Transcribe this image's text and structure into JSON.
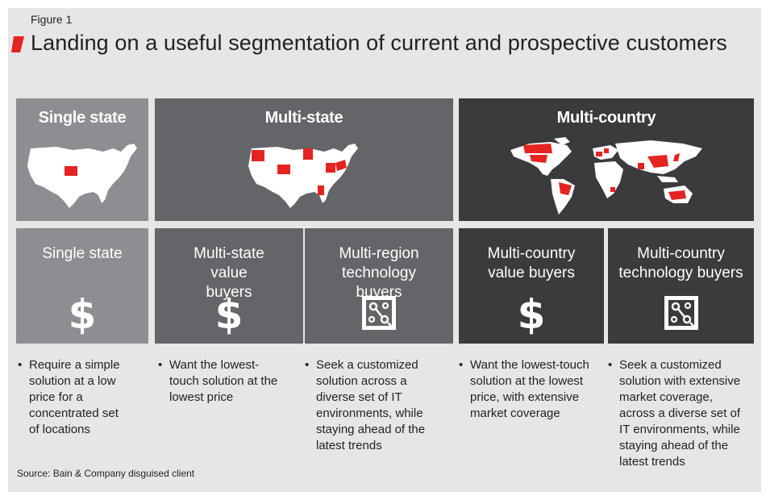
{
  "figure_label": "Figure 1",
  "title": "Landing on a useful segmentation of current and prospective customers",
  "colors": {
    "accent": "#e52321",
    "light_gray": "#8d8e91",
    "mid_gray": "#646569",
    "dark_gray": "#3b3b3d",
    "background": "#e6e6e6"
  },
  "headers": [
    {
      "title": "Single state",
      "map": "usa-map-one-state"
    },
    {
      "title": "Multi-state",
      "map": "usa-map-multi-state"
    },
    {
      "title": "Multi-country",
      "map": "world-map"
    }
  ],
  "segments": [
    {
      "title": "Single state",
      "icon": "dollar-icon",
      "icon_text": "$",
      "description": "Require a simple solution at a low price for a concentrated set of locations"
    },
    {
      "title": "Multi-state value buyers",
      "icon": "dollar-icon",
      "icon_text": "$",
      "description": "Want the lowest-touch solution at the lowest price"
    },
    {
      "title": "Multi-region technology buyers",
      "icon": "technology-circuit-icon",
      "icon_text": "",
      "description": "Seek a customized solution across a diverse set of IT environments, while staying ahead of the latest trends"
    },
    {
      "title": "Multi-country value buyers",
      "icon": "dollar-icon",
      "icon_text": "$",
      "description": "Want the lowest-touch solution at the lowest price, with extensive market coverage"
    },
    {
      "title": "Multi-country technology buyers",
      "icon": "technology-circuit-icon",
      "icon_text": "",
      "description": "Seek a customized solution with extensive market coverage, across a diverse set of IT environments, while staying ahead of the latest trends"
    }
  ],
  "bullet": "•",
  "source": "Source: Bain & Company disguised client"
}
